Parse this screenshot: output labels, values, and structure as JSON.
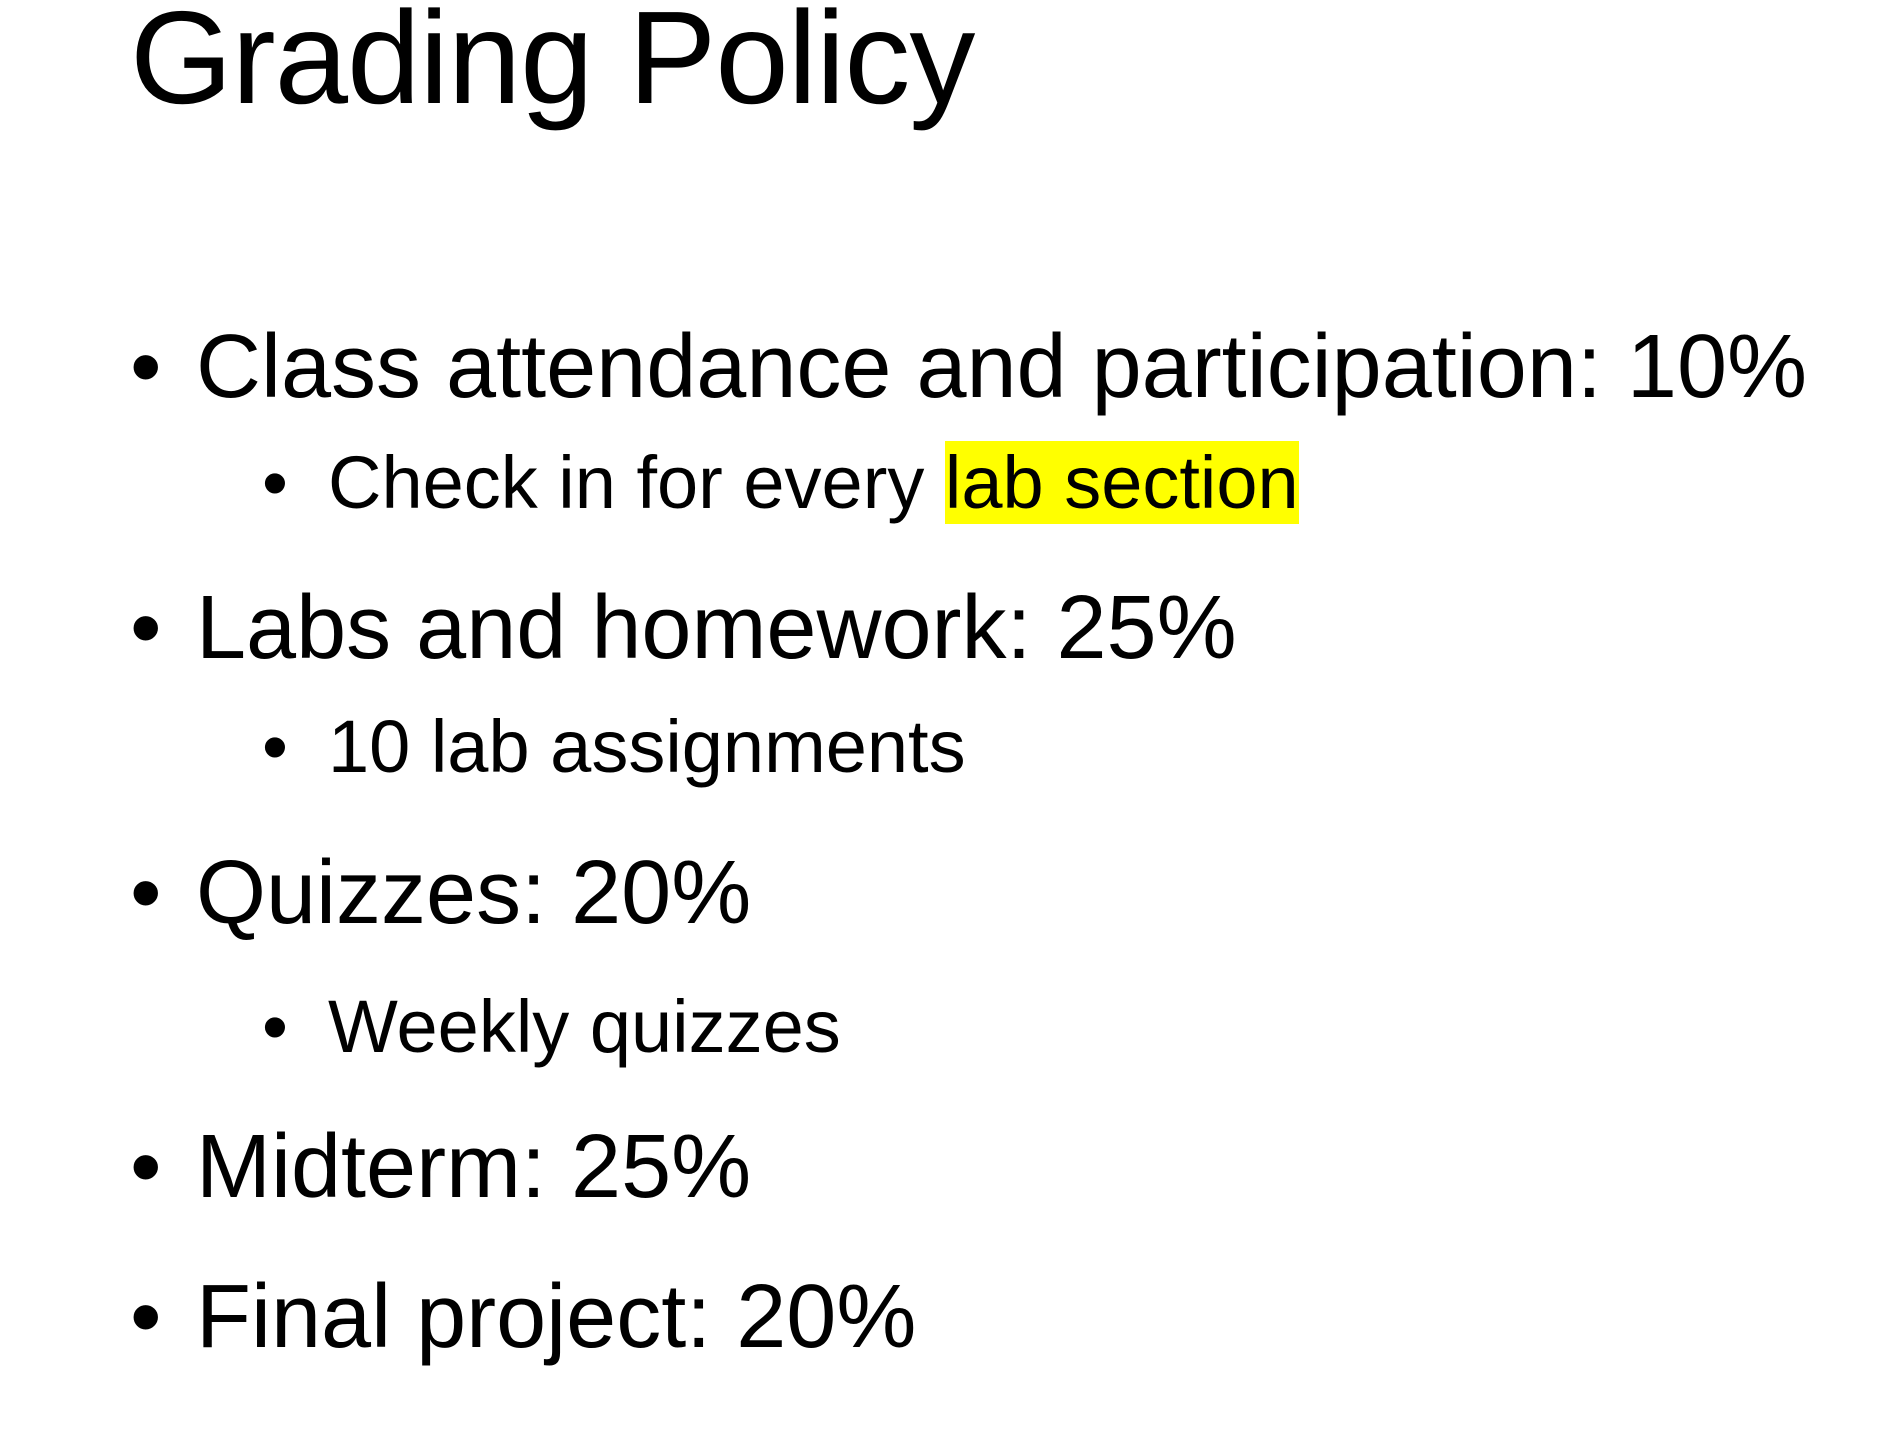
{
  "title": "Grading Policy",
  "bullets": [
    {
      "level": 1,
      "text": "Class attendance and participation: 10%"
    },
    {
      "level": 2,
      "text_plain": "Check in for every ",
      "text_highlight": "lab section",
      "highlight_color": "#ffff00"
    },
    {
      "level": 1,
      "text": "Labs and homework: 25%"
    },
    {
      "level": 2,
      "text": "10 lab assignments"
    },
    {
      "level": 1,
      "text": "Quizzes: 20%"
    },
    {
      "level": 2,
      "text": "Weekly quizzes"
    },
    {
      "level": 1,
      "text": "Midterm: 25%"
    },
    {
      "level": 1,
      "text": "Final project: 20%"
    }
  ],
  "bullet_glyph": "•",
  "colors": {
    "text": "#000000",
    "background": "#ffffff",
    "highlight": "#ffff00"
  }
}
